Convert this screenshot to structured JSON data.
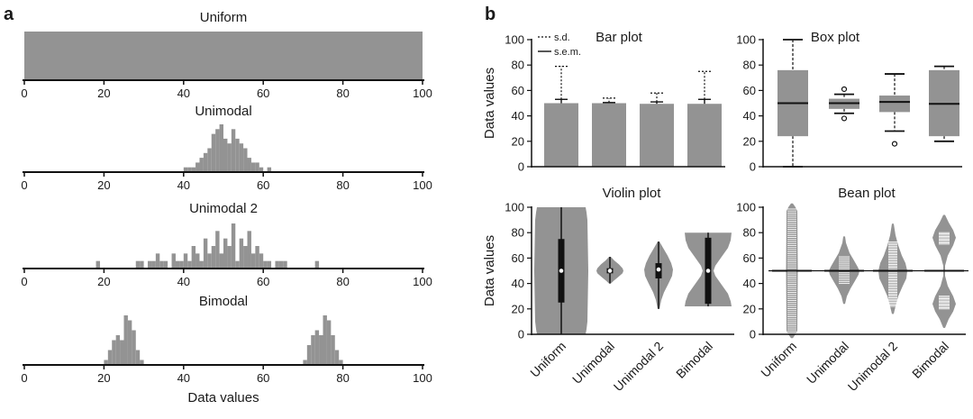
{
  "panel_labels": {
    "a": "a",
    "b": "b"
  },
  "colors": {
    "fill": "#939393",
    "ink": "#111111",
    "bean_line": "#ffffff"
  },
  "chart_data": [
    {
      "id": "uniform",
      "type": "histogram",
      "title": "Uniform",
      "xlim": [
        0,
        100
      ],
      "xticks": [
        0,
        20,
        40,
        60,
        80,
        100
      ],
      "bin_width": 1,
      "bin_start": 0,
      "ymax": 1,
      "counts": [
        1,
        1,
        1,
        1,
        1,
        1,
        1,
        1,
        1,
        1,
        1,
        1,
        1,
        1,
        1,
        1,
        1,
        1,
        1,
        1,
        1,
        1,
        1,
        1,
        1,
        1,
        1,
        1,
        1,
        1,
        1,
        1,
        1,
        1,
        1,
        1,
        1,
        1,
        1,
        1,
        1,
        1,
        1,
        1,
        1,
        1,
        1,
        1,
        1,
        1,
        1,
        1,
        1,
        1,
        1,
        1,
        1,
        1,
        1,
        1,
        1,
        1,
        1,
        1,
        1,
        1,
        1,
        1,
        1,
        1,
        1,
        1,
        1,
        1,
        1,
        1,
        1,
        1,
        1,
        1,
        1,
        1,
        1,
        1,
        1,
        1,
        1,
        1,
        1,
        1,
        1,
        1,
        1,
        1,
        1,
        1,
        1,
        1,
        1,
        1
      ]
    },
    {
      "id": "unimodal",
      "type": "histogram",
      "title": "Unimodal",
      "xlim": [
        0,
        100
      ],
      "xticks": [
        0,
        20,
        40,
        60,
        80,
        100
      ],
      "bin_width": 1,
      "bin_start": 40,
      "ymax": 10,
      "counts": [
        1,
        1,
        1,
        2,
        3,
        4,
        5,
        8,
        9,
        10,
        7,
        6,
        9,
        7,
        6,
        5,
        3,
        2,
        2,
        1,
        0,
        1
      ]
    },
    {
      "id": "unimodal2",
      "type": "histogram",
      "title": "Unimodal 2",
      "xlim": [
        0,
        100
      ],
      "xticks": [
        0,
        20,
        40,
        60,
        80,
        100
      ],
      "bin_width": 1,
      "bin_start": 18,
      "ymax": 6,
      "counts": [
        1,
        0,
        0,
        0,
        0,
        0,
        0,
        0,
        0,
        0,
        1,
        1,
        0,
        1,
        1,
        2,
        1,
        1,
        0,
        2,
        1,
        1,
        2,
        1,
        3,
        2,
        1,
        4,
        2,
        3,
        5,
        2,
        4,
        3,
        6,
        1,
        4,
        3,
        5,
        2,
        3,
        2,
        1,
        1,
        0,
        1,
        1,
        1,
        0,
        0,
        0,
        0,
        0,
        0,
        0,
        1
      ]
    },
    {
      "id": "bimodal",
      "type": "histogram",
      "title": "Bimodal",
      "xlabel": "Data values",
      "xlim": [
        0,
        100
      ],
      "xticks": [
        0,
        20,
        40,
        60,
        80,
        100
      ],
      "bin_width": 1,
      "bin_ranges": [
        [
          20,
          [
            1,
            3,
            5,
            6,
            5,
            10,
            9,
            7,
            3,
            1
          ]
        ],
        [
          70,
          [
            1,
            4,
            6,
            7,
            6,
            10,
            9,
            6,
            3,
            1
          ]
        ]
      ],
      "ymax": 10
    },
    {
      "id": "bar",
      "type": "bar",
      "title": "Bar plot",
      "ylabel": "Data values",
      "categories": [
        "Uniform",
        "Unimodal",
        "Unimodal 2",
        "Bimodal"
      ],
      "values": [
        50,
        50,
        49.5,
        49.5
      ],
      "sd_upper": [
        79,
        54,
        58,
        75
      ],
      "sem_upper": [
        53,
        50.5,
        51,
        53
      ],
      "ylim": [
        0,
        100
      ],
      "yticks": [
        0,
        20,
        40,
        60,
        80,
        100
      ],
      "legend": {
        "sd": "s.d.",
        "sem": "s.e.m.",
        "position": "top-left"
      }
    },
    {
      "id": "box",
      "type": "box",
      "title": "Box plot",
      "categories": [
        "Uniform",
        "Unimodal",
        "Unimodal 2",
        "Bimodal"
      ],
      "stats": [
        {
          "min": 0,
          "q1": 24,
          "median": 50,
          "q3": 76,
          "max": 100,
          "outliers": []
        },
        {
          "min": 42,
          "q1": 45.5,
          "median": 50,
          "q3": 53.5,
          "max": 57,
          "outliers": [
            38,
            61
          ]
        },
        {
          "min": 28,
          "q1": 43,
          "median": 51,
          "q3": 56,
          "max": 73,
          "outliers": [
            18
          ]
        },
        {
          "min": 20,
          "q1": 24,
          "median": 49.5,
          "q3": 76,
          "max": 79,
          "outliers": []
        }
      ],
      "ylim": [
        0,
        100
      ],
      "yticks": [
        0,
        20,
        40,
        60,
        80,
        100
      ]
    },
    {
      "id": "violin",
      "type": "violin",
      "title": "Violin plot",
      "ylabel": "Data values",
      "categories": [
        "Uniform",
        "Unimodal",
        "Unimodal 2",
        "Bimodal"
      ],
      "stats": [
        {
          "min": 0,
          "q1": 25,
          "median": 50,
          "q3": 75,
          "max": 100
        },
        {
          "min": 40,
          "q1": 48,
          "median": 50,
          "q3": 52,
          "max": 61
        },
        {
          "min": 20,
          "q1": 44,
          "median": 51,
          "q3": 56,
          "max": 73
        },
        {
          "min": 22,
          "q1": 24,
          "median": 50,
          "q3": 76,
          "max": 80
        }
      ],
      "ylim": [
        0,
        100
      ],
      "yticks": [
        0,
        20,
        40,
        60,
        80,
        100
      ]
    },
    {
      "id": "bean",
      "type": "bean",
      "title": "Bean plot",
      "categories": [
        "Uniform",
        "Unimodal",
        "Unimodal 2",
        "Bimodal"
      ],
      "overall_mean": 50,
      "ylim": [
        0,
        100
      ],
      "yticks": [
        0,
        20,
        40,
        60,
        80,
        100
      ]
    }
  ]
}
